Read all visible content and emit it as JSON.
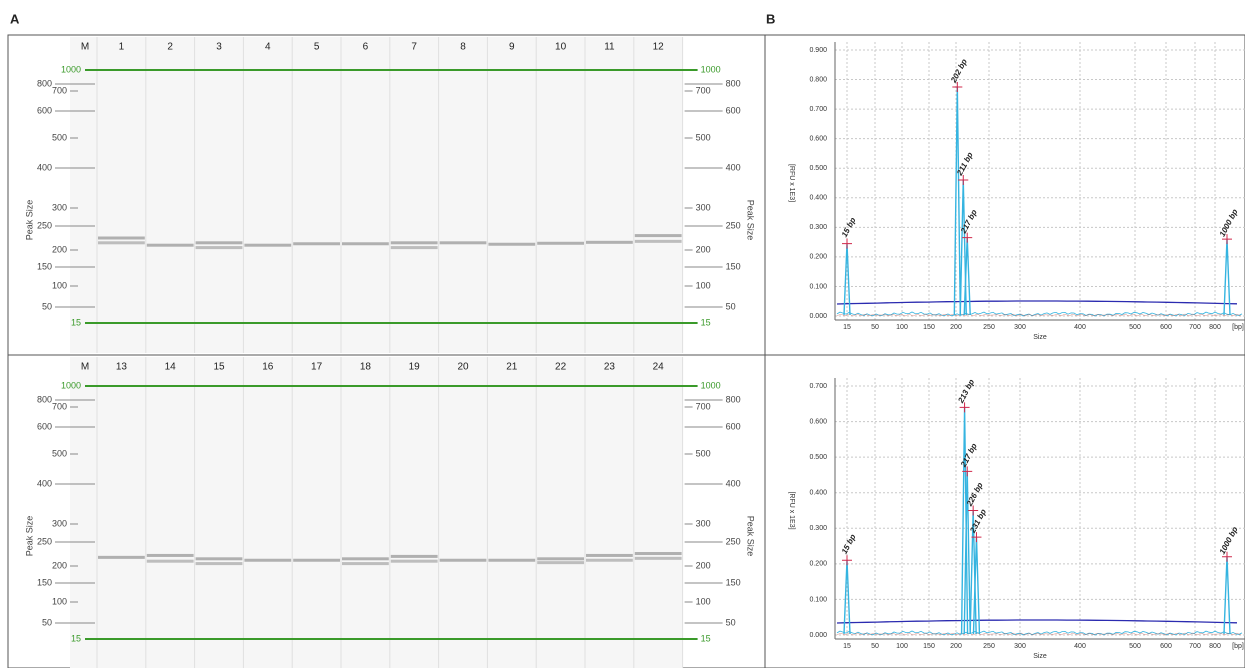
{
  "panel_labels": [
    "A",
    "B"
  ],
  "gel_axis_title": "Peak Size",
  "ladder": [
    1000,
    800,
    700,
    600,
    500,
    400,
    300,
    250,
    200,
    150,
    100,
    50,
    15
  ],
  "gels": [
    {
      "marker_label": "M",
      "lanes": [
        {
          "label": "1",
          "bands": [
            225,
            215
          ]
        },
        {
          "label": "2",
          "bands": [
            210
          ]
        },
        {
          "label": "3",
          "bands": [
            215,
            205
          ]
        },
        {
          "label": "4",
          "bands": [
            210
          ]
        },
        {
          "label": "5",
          "bands": [
            213
          ]
        },
        {
          "label": "6",
          "bands": [
            213
          ]
        },
        {
          "label": "7",
          "bands": [
            215,
            205
          ]
        },
        {
          "label": "8",
          "bands": [
            215
          ]
        },
        {
          "label": "9",
          "bands": [
            212
          ]
        },
        {
          "label": "10",
          "bands": [
            214
          ]
        },
        {
          "label": "11",
          "bands": [
            216
          ]
        },
        {
          "label": "12",
          "bands": [
            230,
            218
          ]
        }
      ]
    },
    {
      "marker_label": "M",
      "lanes": [
        {
          "label": "13",
          "bands": [
            218
          ]
        },
        {
          "label": "14",
          "bands": [
            222,
            210
          ]
        },
        {
          "label": "15",
          "bands": [
            215,
            205
          ]
        },
        {
          "label": "16",
          "bands": [
            212
          ]
        },
        {
          "label": "17",
          "bands": [
            212
          ]
        },
        {
          "label": "18",
          "bands": [
            215,
            205
          ]
        },
        {
          "label": "19",
          "bands": [
            220,
            210
          ]
        },
        {
          "label": "20",
          "bands": [
            212
          ]
        },
        {
          "label": "21",
          "bands": [
            212
          ]
        },
        {
          "label": "22",
          "bands": [
            215,
            207
          ]
        },
        {
          "label": "23",
          "bands": [
            222,
            212
          ]
        },
        {
          "label": "24",
          "bands": [
            226,
            216
          ]
        }
      ]
    }
  ],
  "chart_data": [
    {
      "type": "electropherogram",
      "ylabel": "[RFU x 1E3]",
      "xlabel": "Size",
      "x_unit_label": "[bp]",
      "ylim": [
        0,
        0.9
      ],
      "yticks": [
        {
          "value": 0,
          "label": "0.000"
        },
        {
          "value": 0.1,
          "label": "0.100"
        },
        {
          "value": 0.2,
          "label": "0.200"
        },
        {
          "value": 0.3,
          "label": "0.300"
        },
        {
          "value": 0.4,
          "label": "0.400"
        },
        {
          "value": 0.5,
          "label": "0.500"
        },
        {
          "value": 0.6,
          "label": "0.600"
        },
        {
          "value": 0.7,
          "label": "0.700"
        },
        {
          "value": 0.8,
          "label": "0.800"
        },
        {
          "value": 0.9,
          "label": "0.900"
        }
      ],
      "xticks": [
        15,
        50,
        100,
        150,
        200,
        250,
        300,
        400,
        500,
        600,
        700,
        800
      ],
      "grid": true,
      "peaks": [
        {
          "x": 15,
          "y": 0.245,
          "label": "15 bp"
        },
        {
          "x": 202,
          "y": 0.775,
          "label": "202 bp"
        },
        {
          "x": 211,
          "y": 0.46,
          "label": "211 bp"
        },
        {
          "x": 217,
          "y": 0.265,
          "label": "217 bp"
        },
        {
          "x": 1000,
          "y": 0.26,
          "label": "1000 bp"
        }
      ]
    },
    {
      "type": "electropherogram",
      "ylabel": "[RFU x 1E3]",
      "xlabel": "Size",
      "x_unit_label": "[bp]",
      "ylim": [
        0,
        0.7
      ],
      "yticks": [
        {
          "value": 0,
          "label": "0.000"
        },
        {
          "value": 0.1,
          "label": "0.100"
        },
        {
          "value": 0.2,
          "label": "0.200"
        },
        {
          "value": 0.3,
          "label": "0.300"
        },
        {
          "value": 0.4,
          "label": "0.400"
        },
        {
          "value": 0.5,
          "label": "0.500"
        },
        {
          "value": 0.6,
          "label": "0.600"
        },
        {
          "value": 0.7,
          "label": "0.700"
        }
      ],
      "xticks": [
        15,
        50,
        100,
        150,
        200,
        250,
        300,
        400,
        500,
        600,
        700,
        800
      ],
      "grid": true,
      "peaks": [
        {
          "x": 15,
          "y": 0.21,
          "label": "15 bp"
        },
        {
          "x": 213,
          "y": 0.64,
          "label": "213 bp"
        },
        {
          "x": 217,
          "y": 0.46,
          "label": "217 bp"
        },
        {
          "x": 226,
          "y": 0.35,
          "label": "226 bp"
        },
        {
          "x": 231,
          "y": 0.275,
          "label": "231 bp"
        },
        {
          "x": 1000,
          "y": 0.22,
          "label": "1000 bp"
        }
      ]
    }
  ]
}
